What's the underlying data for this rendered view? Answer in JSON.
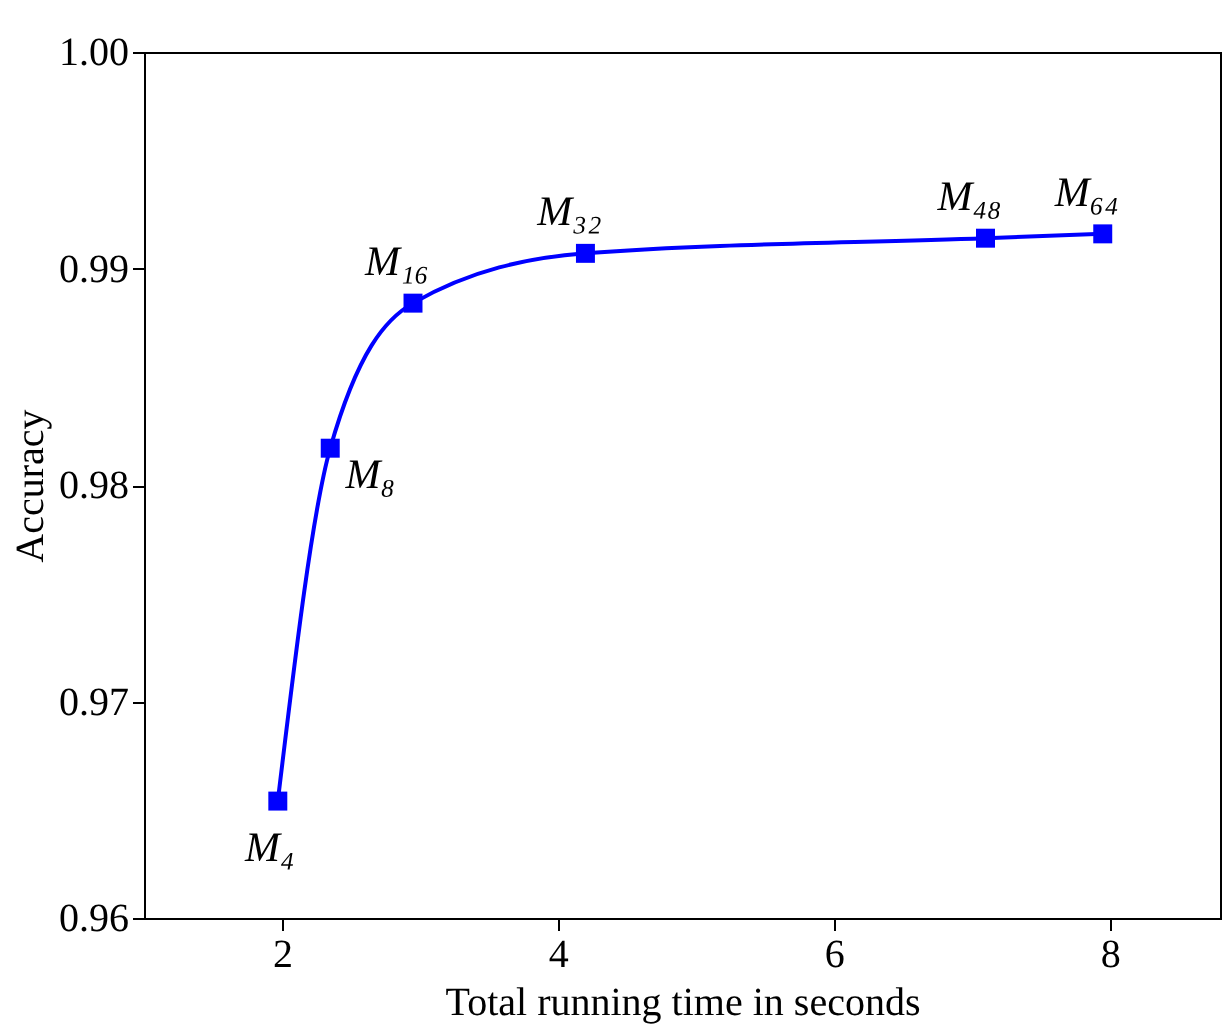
{
  "chart_data": {
    "type": "line",
    "xlabel": "Total running time in seconds",
    "ylabel": "Accuracy",
    "x": [
      1.97,
      2.35,
      2.95,
      4.2,
      7.1,
      7.95
    ],
    "series": [
      {
        "color": "#0000ff",
        "values": [
          0.9654,
          0.9817,
          0.9884,
          0.9907,
          0.9914,
          0.9916
        ]
      }
    ],
    "xlim": [
      1,
      8.8
    ],
    "xticks": [
      2,
      4,
      6,
      8
    ],
    "ylim": [
      0.96,
      1.0
    ],
    "yticks": [
      {
        "value": 0.96,
        "label": "0.96"
      },
      {
        "value": 0.97,
        "label": "0.97"
      },
      {
        "value": 0.98,
        "label": "0.98"
      },
      {
        "value": 0.99,
        "label": "0.99"
      },
      {
        "value": 1.0,
        "label": "1.00"
      }
    ],
    "marker": "square",
    "line_style": "solid",
    "annotations": [
      {
        "text": "M₄",
        "x": 1.97,
        "y": 0.9654
      },
      {
        "text": "M₈",
        "x": 2.35,
        "y": 0.9817
      },
      {
        "text": "M₁₆",
        "x": 2.95,
        "y": 0.9884
      },
      {
        "text": "M₃₂",
        "x": 4.2,
        "y": 0.9907
      },
      {
        "text": "M₄₈",
        "x": 7.1,
        "y": 0.9914
      },
      {
        "text": "M₆₄",
        "x": 7.95,
        "y": 0.9916
      }
    ]
  }
}
